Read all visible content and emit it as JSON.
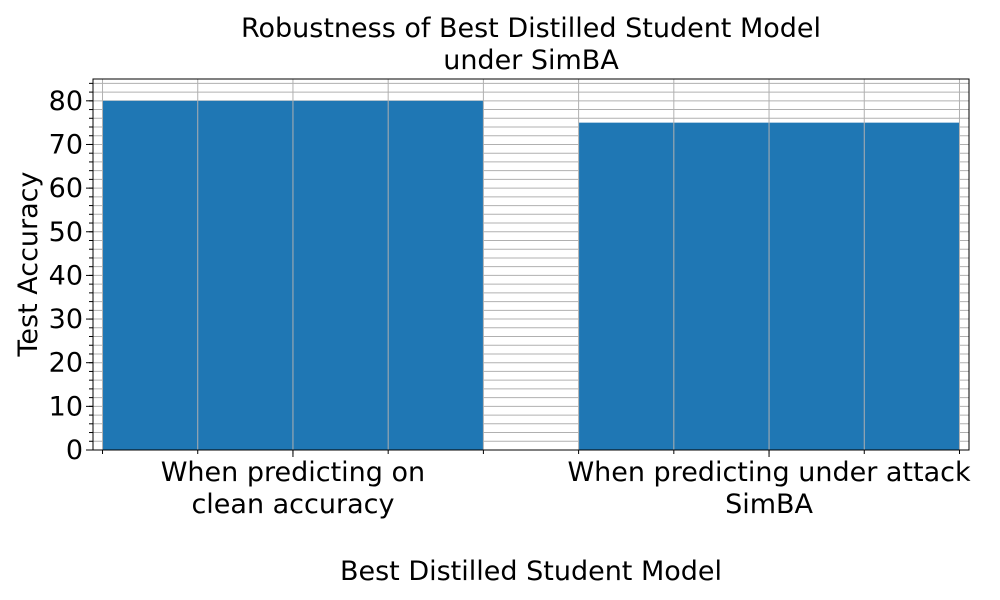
{
  "chart_data": {
    "type": "bar",
    "title_lines": [
      "Robustness of Best Distilled Student Model",
      "under SimBA"
    ],
    "xlabel": "Best Distilled Student Model",
    "ylabel": "Test Accuracy",
    "categories": [
      [
        "When predicting on",
        "clean accuracy"
      ],
      [
        "When predicting under attack",
        "SimBA"
      ]
    ],
    "values": [
      80,
      75
    ],
    "ylim": [
      0,
      85
    ],
    "y_ticks": [
      0,
      10,
      20,
      30,
      40,
      50,
      60,
      70,
      80
    ],
    "y_minor_step": 2,
    "grid": true,
    "bar_color": "#1f77b4",
    "grid_color": "#b0b0b0"
  }
}
